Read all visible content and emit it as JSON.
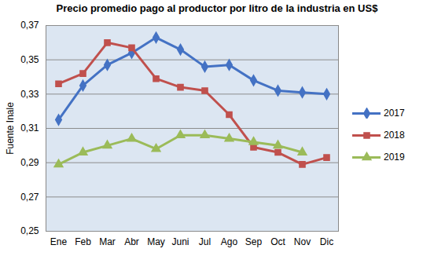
{
  "chart_data": {
    "type": "line",
    "title": "Precio promedio pago al productor por litro de la industria en US$",
    "y_label": "Fuente Inale",
    "categories": [
      "Ene",
      "Feb",
      "Mar",
      "Abr",
      "May",
      "Juni",
      "Jul",
      "Ago",
      "Sep",
      "Oct",
      "Nov",
      "Dic"
    ],
    "series": [
      {
        "name": "2017",
        "color": "#4472c4",
        "marker": "diamond",
        "values": [
          0.315,
          0.335,
          0.347,
          0.354,
          0.363,
          0.356,
          0.346,
          0.347,
          0.338,
          0.332,
          0.331,
          0.33
        ]
      },
      {
        "name": "2018",
        "color": "#c0504d",
        "marker": "square",
        "values": [
          0.336,
          0.342,
          0.36,
          0.357,
          0.339,
          0.334,
          0.332,
          0.318,
          0.299,
          0.296,
          0.289,
          0.293
        ]
      },
      {
        "name": "2019",
        "color": "#9bbb59",
        "marker": "triangle",
        "values": [
          0.289,
          0.296,
          0.3,
          0.304,
          0.298,
          0.306,
          0.306,
          0.304,
          0.302,
          0.3,
          0.296,
          null
        ]
      }
    ],
    "ylim": [
      0.25,
      0.37
    ],
    "yticks": [
      {
        "value": 0.25,
        "label": "0,25"
      },
      {
        "value": 0.27,
        "label": "0,27"
      },
      {
        "value": 0.29,
        "label": "0,29"
      },
      {
        "value": 0.31,
        "label": "0,31"
      },
      {
        "value": 0.33,
        "label": "0,33"
      },
      {
        "value": 0.35,
        "label": "0,35"
      },
      {
        "value": 0.37,
        "label": "0,37"
      }
    ],
    "grid": true,
    "legend": "right"
  }
}
